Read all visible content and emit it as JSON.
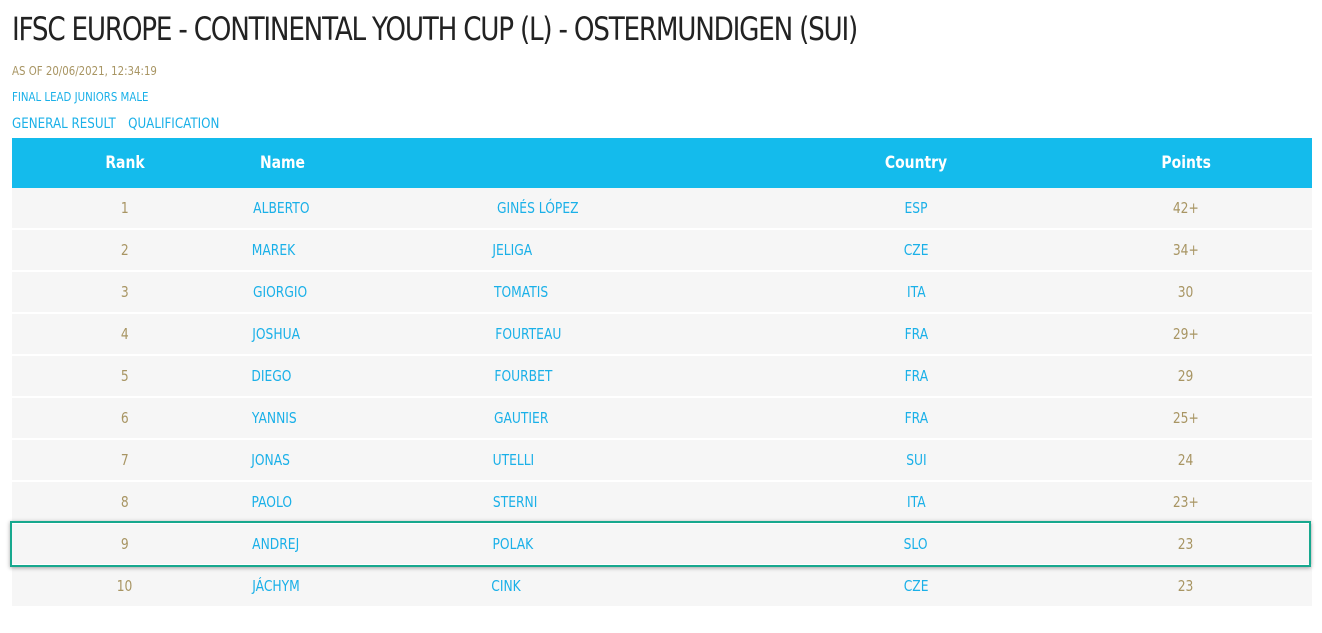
{
  "header": {
    "title": "IFSC EUROPE - CONTINENTAL YOUTH CUP (L) - OSTERMUNDIGEN (SUI)",
    "as_of": "AS OF 20/06/2021, 12:34:19",
    "category": "FINAL LEAD JUNIORS MALE"
  },
  "nav": {
    "general_result": "GENERAL RESULT",
    "qualification": "QUALIFICATION"
  },
  "table": {
    "columns": {
      "rank": "Rank",
      "name": "Name",
      "country": "Country",
      "points": "Points"
    },
    "rows": [
      {
        "rank": "1",
        "first": "ALBERTO",
        "last": "GINÉS LÓPEZ",
        "country": "ESP",
        "points": "42+"
      },
      {
        "rank": "2",
        "first": "MAREK",
        "last": "JELIGA",
        "country": "CZE",
        "points": "34+"
      },
      {
        "rank": "3",
        "first": "GIORGIO",
        "last": "TOMATIS",
        "country": "ITA",
        "points": "30"
      },
      {
        "rank": "4",
        "first": "JOSHUA",
        "last": "FOURTEAU",
        "country": "FRA",
        "points": "29+"
      },
      {
        "rank": "5",
        "first": "DIEGO",
        "last": "FOURBET",
        "country": "FRA",
        "points": "29"
      },
      {
        "rank": "6",
        "first": "YANNIS",
        "last": "GAUTIER",
        "country": "FRA",
        "points": "25+"
      },
      {
        "rank": "7",
        "first": "JONAS",
        "last": "UTELLI",
        "country": "SUI",
        "points": "24"
      },
      {
        "rank": "8",
        "first": "PAOLO",
        "last": "STERNI",
        "country": "ITA",
        "points": "23+"
      },
      {
        "rank": "9",
        "first": "ANDREJ",
        "last": "POLAK",
        "country": "SLO",
        "points": "23"
      },
      {
        "rank": "10",
        "first": "JÁCHYM",
        "last": "CINK",
        "country": "CZE",
        "points": "23"
      }
    ]
  },
  "colors": {
    "header_bg": "#14bbec",
    "link_blue": "#1ab0e8",
    "gold_text": "#a89563",
    "highlight_border": "#17a88e"
  }
}
